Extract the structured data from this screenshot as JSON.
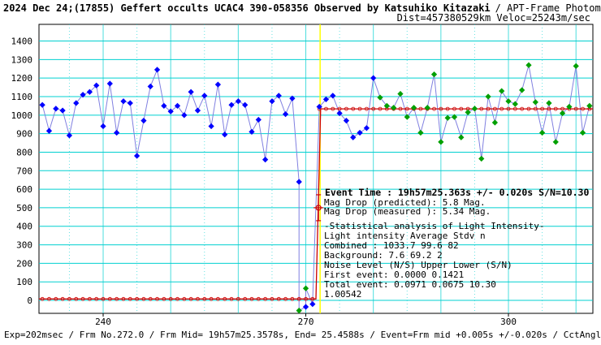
{
  "header": {
    "title_bold": "2024 Dec 24;(17855) Geffert occults UCAC4 390-058356 Observed by Katsuhiko Kitazaki",
    "title_rest": "/ APT-Frame Photometry /",
    "subtitle": "Dist=457380529km Veloc=25243m/sec"
  },
  "annotation": {
    "event_time": "Event Time : 19h57m25.363s  +/- 0.020s  S/N=10.30",
    "mag_pred": "Mag Drop (predicted):  5.8   Mag.",
    "mag_meas": "Mag Drop (measured ):  5.34  Mag.",
    "stat_title": "-Statistical analysis of Light Intensity-",
    "lines": [
      "Light intensity    Average   Stdv      n",
      "   Combined  :      1033.7    99.6     82",
      "   Background:         7.6    69.2      2",
      "Noise Level (N/S)  Upper    Lower   (S/N)",
      "   First event:     0.0000   0.1421",
      "   Total event:     0.0971   0.0675    10.30",
      "1.00542"
    ]
  },
  "footer": "Exp=202msec / Frm No.272.0 / Frm Mid= 19h57m25.3578s, End= 25.4588s / Event=Frm mid +0.005s +/-0.020s / CctAngle=0.0deg",
  "colors": {
    "background_series": "#0000ff",
    "star_series": "#00a000",
    "model_line": "#cc0000",
    "event_line": "#ffff00",
    "gridline": "#00d0d0",
    "connect_line": "#8080e0"
  },
  "chart_data": {
    "type": "scatter",
    "title": "2024 Dec 24;(17855) Geffert occults UCAC4 390-058356 Observed by Katsuhiko Kitazaki / APT-Frame Photometry /",
    "xlabel": "",
    "ylabel": "",
    "xlim": [
      230.5,
      312.5
    ],
    "ylim": [
      -70,
      1490
    ],
    "x_ticks": [
      240,
      270,
      300
    ],
    "y_ticks": [
      0,
      100,
      200,
      300,
      400,
      500,
      600,
      700,
      800,
      900,
      1000,
      1100,
      1200,
      1300,
      1400
    ],
    "grid": true,
    "event_frame": 272.0,
    "series": [
      {
        "name": "",
        "marker": "diamond",
        "color": "#0000ff",
        "x": [
          231,
          232,
          233,
          234,
          235,
          236,
          237,
          238,
          239,
          240,
          241,
          242,
          243,
          244,
          245,
          246,
          247,
          248,
          249,
          250,
          251,
          252,
          253,
          254,
          255,
          256,
          257,
          258,
          259,
          260,
          261,
          262,
          263,
          264,
          265,
          266,
          267,
          268,
          269,
          270,
          271,
          272,
          273,
          274,
          275,
          276,
          277,
          278,
          279,
          280
        ],
        "y": [
          1055,
          915,
          1035,
          1025,
          890,
          1065,
          1110,
          1125,
          1160,
          940,
          1170,
          905,
          1075,
          1065,
          780,
          970,
          1155,
          1245,
          1050,
          1020,
          1050,
          1000,
          1125,
          1025,
          1105,
          940,
          1165,
          895,
          1055,
          1075,
          1055,
          910,
          975,
          760,
          1075,
          1105,
          1005,
          1090,
          640,
          -35,
          -20,
          1045,
          1085,
          1105,
          1010,
          970,
          880,
          905,
          930,
          1200
        ]
      },
      {
        "name": "",
        "marker": "diamond",
        "color": "#00a000",
        "x": [
          269,
          270,
          281,
          282,
          283,
          284,
          285,
          286,
          287,
          288,
          289,
          290,
          291,
          292,
          293,
          294,
          295,
          296,
          297,
          298,
          299,
          300,
          301,
          302,
          303,
          304,
          305,
          306,
          307,
          308,
          309,
          310,
          311,
          312
        ],
        "y": [
          -55,
          65,
          1095,
          1050,
          1040,
          1115,
          990,
          1040,
          905,
          1040,
          1220,
          855,
          985,
          990,
          880,
          1015,
          1035,
          765,
          1100,
          960,
          1130,
          1075,
          1060,
          1135,
          1270,
          1070,
          905,
          1065,
          855,
          1010,
          1045,
          1265,
          905,
          1050
        ]
      }
    ],
    "model_step": {
      "x": [
        230.5,
        271.5,
        272.2,
        312.5
      ],
      "y": [
        7.6,
        7.6,
        1033.7,
        1033.7
      ]
    },
    "event_marker": {
      "x": 272.0,
      "y": 500,
      "err_low": 430,
      "err_high": 570
    }
  }
}
